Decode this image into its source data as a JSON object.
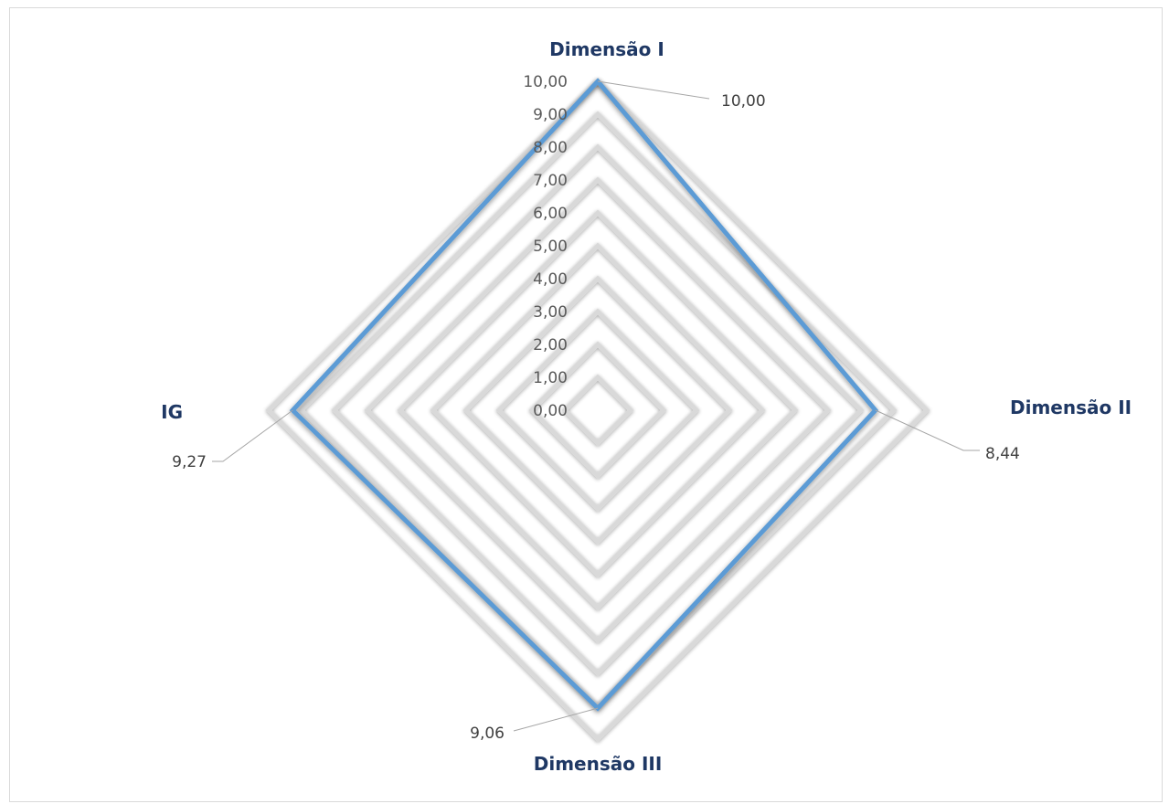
{
  "chart_data": {
    "type": "radar",
    "categories": [
      "Dimensão I",
      "Dimensão II",
      "Dimensão III",
      "IG"
    ],
    "values": [
      10.0,
      8.44,
      9.06,
      9.27
    ],
    "data_labels": [
      "10,00",
      "8,44",
      "9,06",
      "9,27"
    ],
    "rlim": [
      0,
      10
    ],
    "ticks": [
      "0,00",
      "1,00",
      "2,00",
      "3,00",
      "4,00",
      "5,00",
      "6,00",
      "7,00",
      "8,00",
      "9,00",
      "10,00"
    ],
    "grid": true,
    "legend": "none"
  },
  "colors": {
    "series": "#5b9bd5",
    "axis_label": "#1f3864",
    "tick_label": "#595959",
    "data_label": "#404040",
    "grid": "#d9d9d9"
  }
}
